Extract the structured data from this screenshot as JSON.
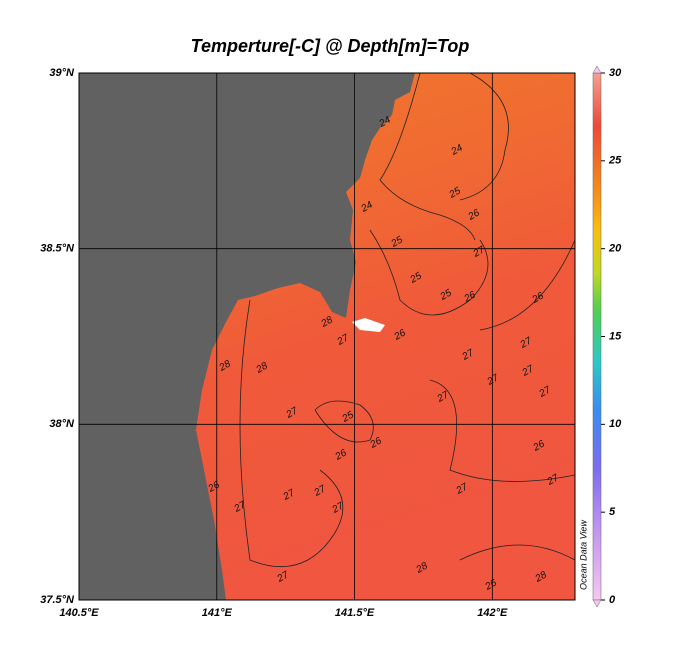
{
  "title": "Temperture[-C] @ Depth[m]=Top",
  "lon_range": [
    140.5,
    142.3
  ],
  "lat_range": [
    37.5,
    39
  ],
  "lon_ticks": [
    {
      "value": 140.5,
      "label": "140.5°E"
    },
    {
      "value": 141,
      "label": "141°E"
    },
    {
      "value": 141.5,
      "label": "141.5°E"
    },
    {
      "value": 142,
      "label": "142°E"
    }
  ],
  "lat_ticks": [
    {
      "value": 37.5,
      "label": "37.5°N"
    },
    {
      "value": 38,
      "label": "38°N"
    },
    {
      "value": 38.5,
      "label": "38.5°N"
    },
    {
      "value": 39,
      "label": "39°N"
    }
  ],
  "colorbar": {
    "range": [
      0,
      30
    ],
    "ticks": [
      0,
      5,
      10,
      15,
      20,
      25,
      30
    ]
  },
  "contour_labels": [
    24,
    24,
    25,
    24,
    26,
    25,
    27,
    25,
    25,
    26,
    26,
    27,
    26,
    28,
    27,
    27,
    28,
    28,
    27,
    27,
    27,
    27,
    27,
    25,
    26,
    26,
    26,
    27,
    27,
    26,
    27,
    27,
    27,
    27,
    28,
    27,
    26,
    28
  ],
  "credit": "Ocean Data View"
}
